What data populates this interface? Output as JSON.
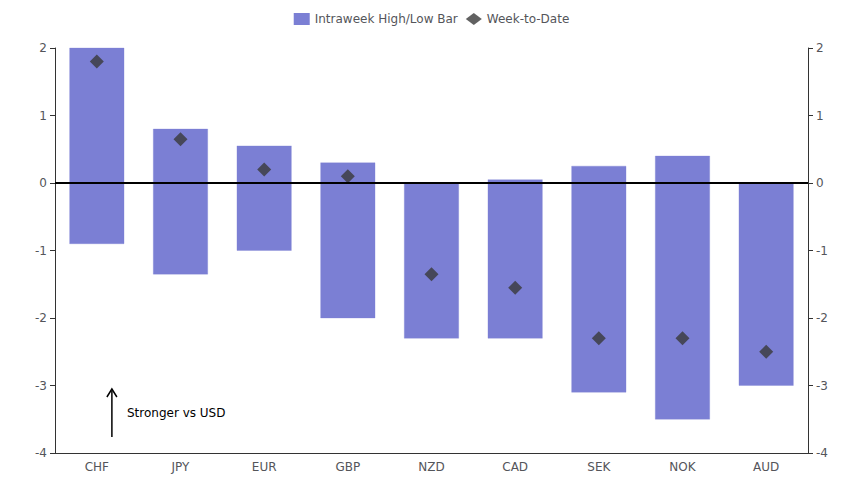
{
  "chart_data": {
    "type": "bar",
    "categories": [
      "CHF",
      "JPY",
      "EUR",
      "GBP",
      "NZD",
      "CAD",
      "SEK",
      "NOK",
      "AUD"
    ],
    "series": [
      {
        "name": "Intraweek High/Low Bar",
        "type": "bar",
        "color": "#7B7FD4",
        "low": [
          -0.9,
          -1.35,
          -1.0,
          -2.0,
          -2.3,
          -2.3,
          -3.1,
          -3.5,
          -3.0
        ],
        "high": [
          2.0,
          0.8,
          0.55,
          0.3,
          0.0,
          0.05,
          0.25,
          0.4,
          0.0
        ]
      },
      {
        "name": "Week-to-Date",
        "type": "scatter",
        "marker": "diamond",
        "color": "#3a3a3a",
        "values": [
          1.8,
          0.65,
          0.2,
          0.1,
          -1.35,
          -1.55,
          -2.3,
          -2.3,
          -2.5
        ]
      }
    ],
    "ylim": [
      -4,
      2
    ],
    "yticks": [
      -4,
      -3,
      -2,
      -1,
      0,
      1,
      2
    ],
    "y2lim": [
      -4,
      2
    ],
    "y2ticks": [
      -4,
      -3,
      -2,
      -1,
      0,
      1,
      2
    ],
    "reference_line": 0,
    "annotation": "Stronger vs USD",
    "legend": "top",
    "grid": false
  }
}
